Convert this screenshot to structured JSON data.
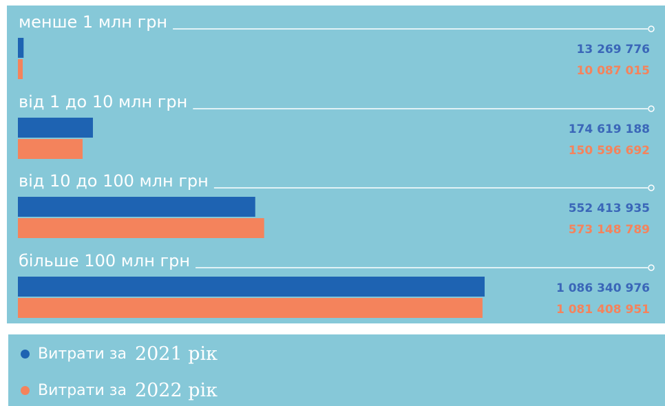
{
  "colors": {
    "background": "#86c8d8",
    "series_2021": "#1e63b2",
    "series_2022": "#f4835c",
    "value_2021": "#3a66b8",
    "value_2022": "#f4835c",
    "label": "#ffffff"
  },
  "chart_data": {
    "type": "bar",
    "orientation": "horizontal",
    "categories": [
      "менше 1 млн грн",
      "від 1 до 10 млн грн",
      "від 10 до 100 млн грн",
      "більше 100 млн грн"
    ],
    "series": [
      {
        "name": "Витрати за 2021 рік",
        "values": [
          13269776,
          174619188,
          552413935,
          1086340976
        ],
        "labels": [
          "13 269 776",
          "174 619 188",
          "552 413 935",
          "1 086 340 976"
        ]
      },
      {
        "name": "Витрати за 2022 рік",
        "values": [
          10087015,
          150596692,
          573148789,
          1081408951
        ],
        "labels": [
          "10 087 015",
          "150 596 692",
          "573 148 789",
          "1 081 408 951"
        ]
      }
    ],
    "title": "",
    "xlabel": "",
    "ylabel": "",
    "grid": false,
    "legend_position": "bottom-left"
  },
  "legend": {
    "items": [
      {
        "text": "Витрати за",
        "year": "2021 рік"
      },
      {
        "text": "Витрати за",
        "year": "2022 рік"
      }
    ]
  }
}
